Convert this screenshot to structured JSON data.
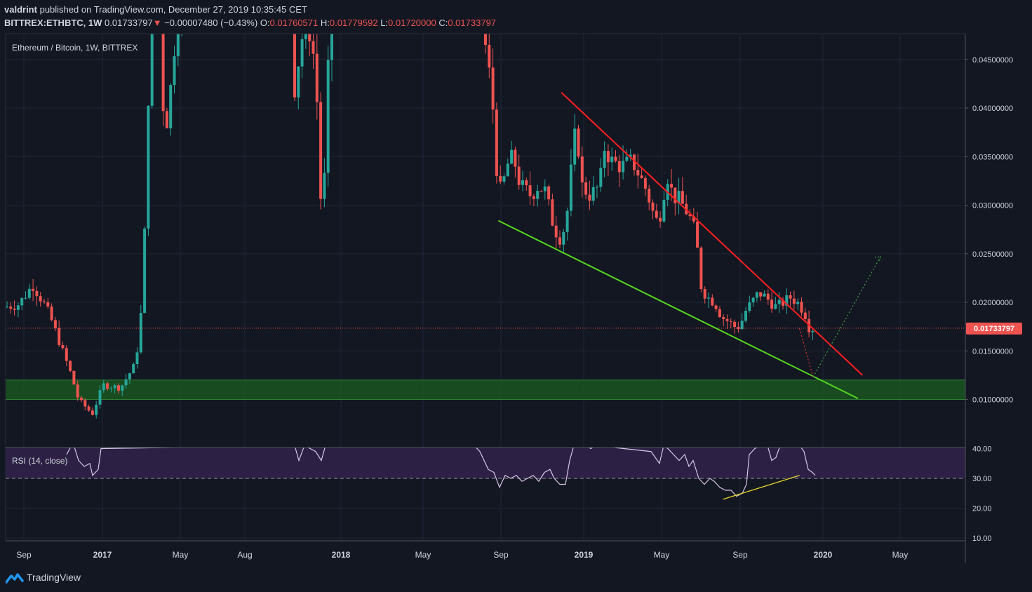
{
  "header": {
    "author": "valdrint",
    "published_text": "published on TradingView.com, December 27, 2019 10:35:45 CET",
    "symbol": "BITTREX:ETHBTC, 1W",
    "last": "0.01733797",
    "arrow": "▼",
    "change": "−0.00007480 (−0.43%)",
    "o_label": "O:",
    "o_val": "0.01760571",
    "h_label": "H:",
    "h_val": "0.01779592",
    "l_label": "L:",
    "l_val": "0.01720000",
    "c_label": "C:",
    "c_val": "0.01733797"
  },
  "chart_title": "Ethereum / Bitcoin, 1W, BITTREX",
  "price_axis": [
    "0.04500000",
    "0.04000000",
    "0.03500000",
    "0.03000000",
    "0.02500000",
    "0.02000000",
    "0.01500000",
    "0.01000000"
  ],
  "current_price_label": "0.01733797",
  "rsi": {
    "label": "RSI (14, close)",
    "axis": [
      "40.00",
      "30.00",
      "20.00",
      "10.00"
    ]
  },
  "time_axis": [
    "Sep",
    "2017",
    "May",
    "Aug",
    "2018",
    "May",
    "Sep",
    "2019",
    "May",
    "Sep",
    "2020",
    "May"
  ],
  "footer": {
    "brand": "TradingView"
  },
  "colors": {
    "background": "#131722",
    "up": "#26a69a",
    "down": "#ef5350",
    "resistance_line": "#ff1f1f",
    "support_line": "#55d61f",
    "support_zone": "#1b5e20",
    "rsi_band": "#2c2145",
    "rsi_line": "#d8c7e6",
    "rsi_trendline": "#e8d52b",
    "grid": "#1f2535"
  },
  "chart_data": {
    "type": "candlestick",
    "symbol": "ETH/BTC",
    "exchange": "BITTREX",
    "interval": "1W",
    "price_ylim": [
      0.0063,
      0.0476
    ],
    "rsi_ylim": [
      8,
      40
    ],
    "rsi_reference_level": 30,
    "support_zone": [
      0.01,
      0.012
    ],
    "annotations": [
      {
        "name": "descending resistance",
        "from": [
          "2018-12-17",
          0.0416
        ],
        "to": [
          "2020-03-30",
          0.0125
        ]
      },
      {
        "name": "descending support",
        "from": [
          "2018-09-10",
          0.0284
        ],
        "to": [
          "2020-03-23",
          0.0101
        ]
      },
      {
        "name": "projected drop",
        "from": [
          "2019-12-23",
          0.0173
        ],
        "to": [
          "2020-01-13",
          0.0123
        ]
      },
      {
        "name": "projected rise",
        "from": [
          "2020-01-13",
          0.0123
        ],
        "to": [
          "2020-04-27",
          0.0247
        ]
      },
      {
        "name": "RSI bullish divergence",
        "from": [
          "2019-08-26",
          23
        ],
        "to": [
          "2019-12-23",
          31
        ]
      }
    ]
  }
}
